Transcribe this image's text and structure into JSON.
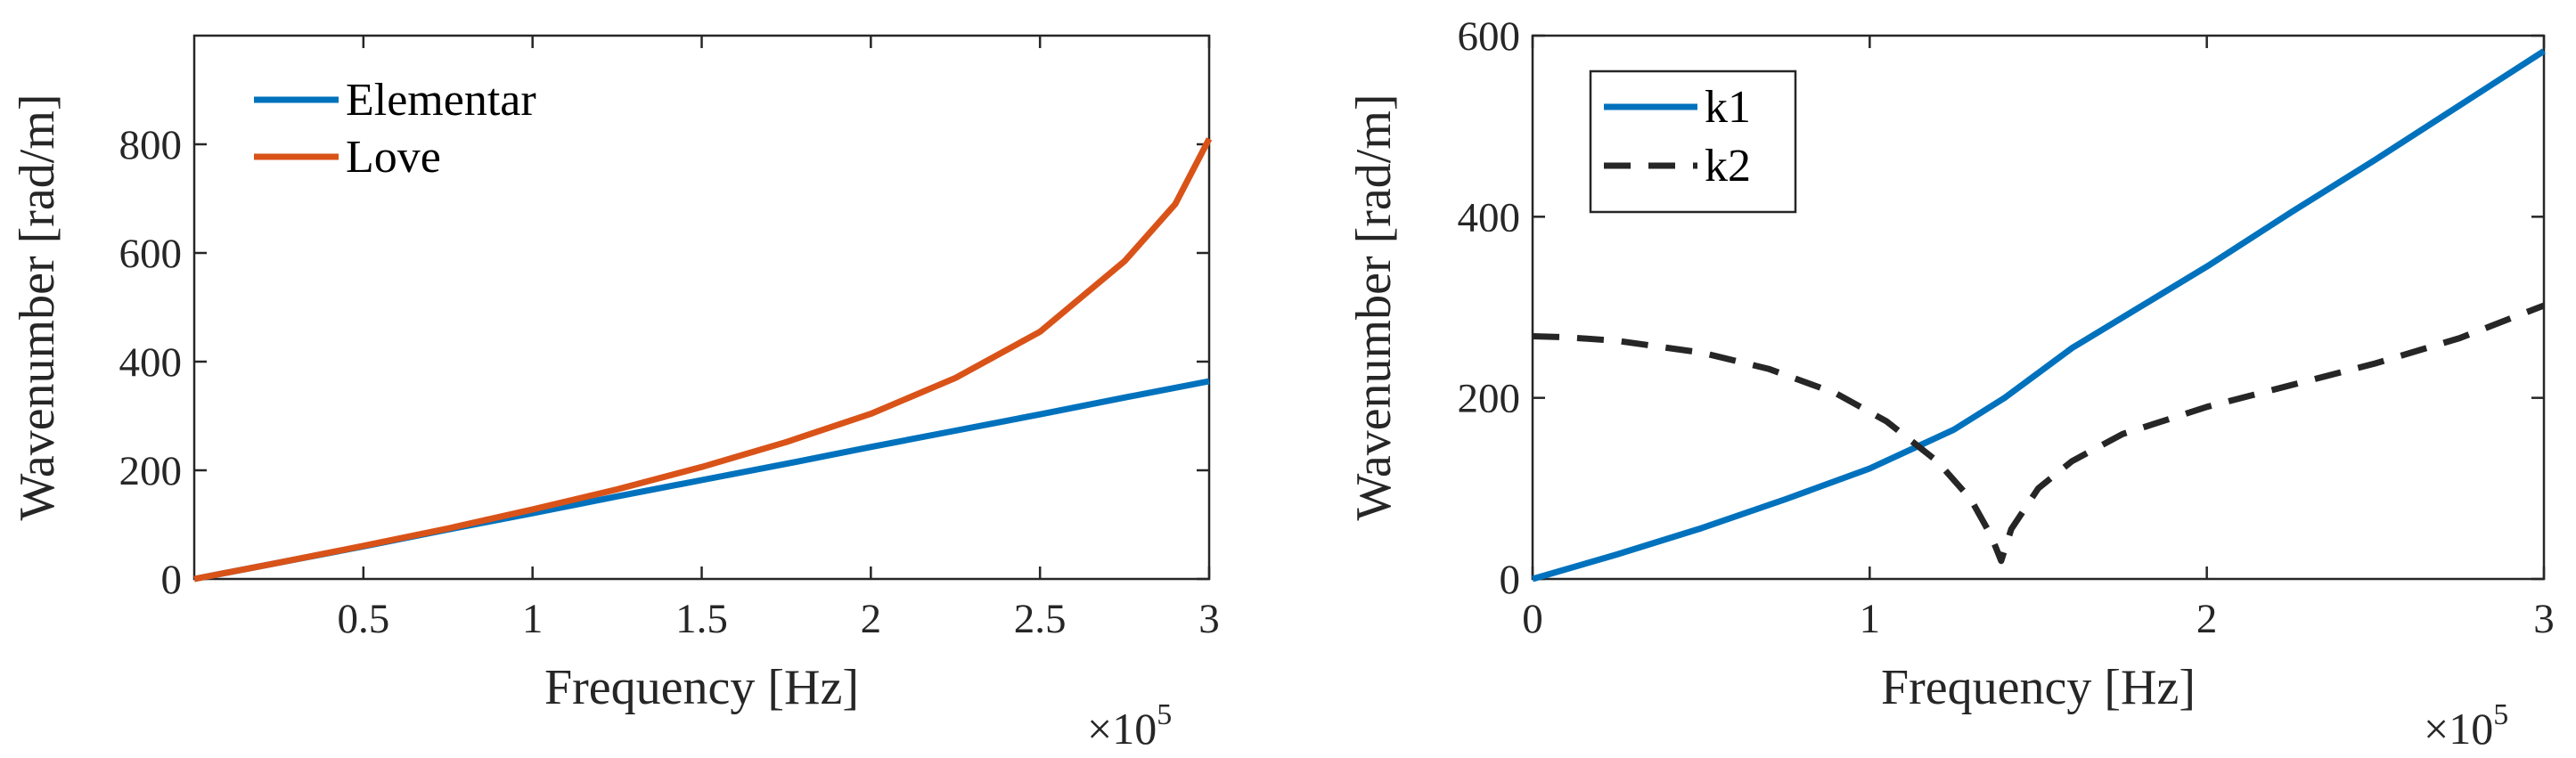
{
  "chart_data": [
    {
      "type": "line",
      "title": "",
      "xlabel": "Frequency [Hz]",
      "ylabel": "Wavenumber [rad/m]",
      "x_exponent": "×10",
      "x_exponent_power": "5",
      "xlim": [
        0,
        3
      ],
      "ylim": [
        0,
        1000
      ],
      "xticks": [
        0.5,
        1,
        1.5,
        2,
        2.5,
        3
      ],
      "xtick_labels": [
        "0.5",
        "1",
        "1.5",
        "2",
        "2.5",
        "3"
      ],
      "yticks": [
        0,
        200,
        400,
        600,
        800
      ],
      "ytick_labels": [
        "0",
        "200",
        "400",
        "600",
        "800"
      ],
      "legend": {
        "location": "top-left",
        "box": false
      },
      "series": [
        {
          "name": "Elementar",
          "color": "#0072BD",
          "style": "solid",
          "x": [
            0,
            0.25,
            0.5,
            0.75,
            1,
            1.25,
            1.5,
            1.75,
            2,
            2.25,
            2.5,
            2.75,
            3
          ],
          "y": [
            0,
            30,
            60,
            91,
            121,
            152,
            182,
            212,
            243,
            273,
            303,
            334,
            364
          ]
        },
        {
          "name": "Love",
          "color": "#D95319",
          "style": "solid",
          "x": [
            0,
            0.25,
            0.5,
            0.75,
            1,
            1.25,
            1.5,
            1.75,
            2,
            2.25,
            2.5,
            2.75,
            2.9,
            3
          ],
          "y": [
            0,
            30,
            61,
            93,
            128,
            165,
            206,
            252,
            304,
            370,
            455,
            585,
            690,
            810
          ]
        }
      ]
    },
    {
      "type": "line",
      "title": "",
      "xlabel": "Frequency [Hz]",
      "ylabel": "Wavenumber [rad/m]",
      "x_exponent": "×10",
      "x_exponent_power": "5",
      "xlim": [
        0,
        3
      ],
      "ylim": [
        0,
        600
      ],
      "xticks": [
        0,
        1,
        2,
        3
      ],
      "xtick_labels": [
        "0",
        "1",
        "2",
        "3"
      ],
      "yticks": [
        0,
        200,
        400,
        600
      ],
      "ytick_labels": [
        "0",
        "200",
        "400",
        "600"
      ],
      "legend": {
        "location": "top-left",
        "box": true
      },
      "series": [
        {
          "name": "k1",
          "color": "#0072BD",
          "style": "solid",
          "x": [
            0,
            0.25,
            0.5,
            0.75,
            1,
            1.25,
            1.4,
            1.6,
            1.8,
            2,
            2.25,
            2.5,
            2.75,
            3
          ],
          "y": [
            0,
            27,
            56,
            88,
            122,
            165,
            200,
            255,
            300,
            345,
            405,
            463,
            523,
            583
          ]
        },
        {
          "name": "k2",
          "color": "#262626",
          "style": "dashed",
          "x": [
            0,
            0.1,
            0.25,
            0.5,
            0.7,
            0.9,
            1.05,
            1.2,
            1.3,
            1.36,
            1.39,
            1.42,
            1.5,
            1.6,
            1.75,
            2,
            2.25,
            2.5,
            2.75,
            3
          ],
          "y": [
            268,
            267,
            263,
            250,
            232,
            205,
            174,
            130,
            88,
            48,
            20,
            55,
            100,
            130,
            160,
            190,
            214,
            238,
            266,
            302
          ]
        }
      ]
    }
  ]
}
